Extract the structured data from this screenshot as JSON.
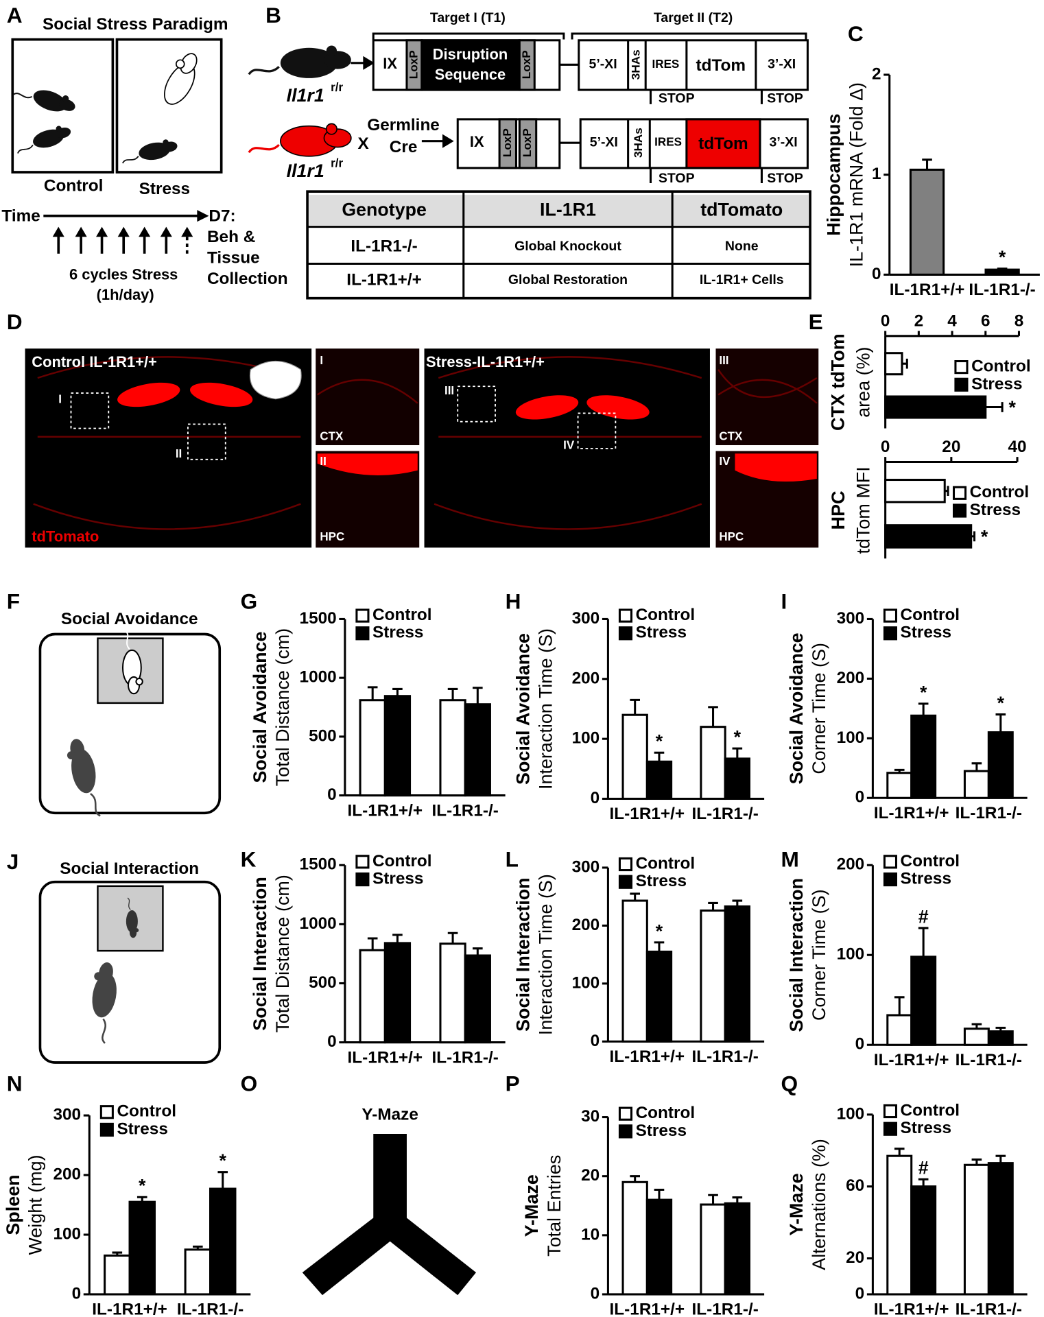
{
  "panel_a": {
    "label": "A",
    "title": "Social Stress Paradigm",
    "control": "Control",
    "stress": "Stress",
    "time": "Time",
    "cycles": "6 cycles Stress",
    "duration": "(1h/day)",
    "endpoint": [
      "D7:",
      "Beh &",
      "Tissue",
      "Collection"
    ]
  },
  "panel_b": {
    "label": "B",
    "target1": "Target I (T1)",
    "target2": "Target II (T2)",
    "gene": "Il1r1",
    "gene_sup": "r/r",
    "cross": "X",
    "cre": [
      "Germline",
      "Cre"
    ],
    "construct1": [
      "IX",
      "LoxP",
      "Disruption",
      "Sequence",
      "LoxP",
      "5’-XI",
      "3HAs",
      "IRES",
      "tdTom",
      "3’-XI",
      "STOP",
      "STOP"
    ],
    "construct2": [
      "IX",
      "LoxP",
      "LoxP",
      "5’-XI",
      "3HAs",
      "IRES",
      "tdTom",
      "3’-XI",
      "STOP",
      "STOP"
    ]
  },
  "table": {
    "header": [
      "Genotype",
      "IL-1R1",
      "tdTomato"
    ],
    "rows": [
      [
        "IL-1R1-/-",
        "Global Knockout",
        "None"
      ],
      [
        "IL-1R1+/+",
        "Global Restoration",
        "IL-1R1+ Cells"
      ]
    ]
  },
  "panel_d": {
    "label": "D",
    "control": "Control IL-1R1+/+",
    "stress": "Stress-IL-1R1+/+",
    "marker": "tdTomato",
    "regions": [
      "I",
      "II",
      "III",
      "IV"
    ],
    "ctx": "CTX",
    "hpc": "HPC"
  },
  "panel_f": {
    "label": "F",
    "title": "Social Avoidance"
  },
  "panel_j": {
    "label": "J",
    "title": "Social Interaction"
  },
  "panel_o": {
    "label": "O",
    "title": "Y-Maze"
  },
  "chart_data": [
    {
      "panel": "C",
      "type": "bar",
      "ylabel_group": "Hippocampus",
      "ylabel": "IL-1R1 mRNA (Fold Δ)",
      "categories": [
        "IL-1R1+/+",
        "IL-1R1-/-"
      ],
      "values": [
        1.05,
        0.05
      ],
      "errors": [
        0.1,
        0.01
      ],
      "colors": [
        "#808080",
        "#000000"
      ],
      "annotations": [
        null,
        "*"
      ],
      "ylim": [
        0,
        2
      ],
      "yticks": [
        0,
        1,
        2
      ]
    },
    {
      "panel": "E",
      "type": "bar",
      "orientation": "horizontal",
      "ylabel_group": "CTX tdTom",
      "ylabel": "area (%)",
      "series": [
        {
          "name": "Control",
          "color": "#ffffff",
          "values": [
            1
          ],
          "errors": [
            0.3
          ]
        },
        {
          "name": "Stress",
          "color": "#000000",
          "values": [
            6
          ],
          "errors": [
            1
          ],
          "annotations": [
            "*"
          ]
        }
      ],
      "xlim": [
        0,
        8
      ],
      "xticks": [
        0,
        2,
        4,
        6,
        8
      ],
      "legend": "upper right"
    },
    {
      "type": "bar",
      "orientation": "horizontal",
      "ylabel_group": "HPC",
      "ylabel": "tdTom MFI",
      "series": [
        {
          "name": "Control",
          "color": "#ffffff",
          "values": [
            18
          ],
          "errors": [
            1
          ]
        },
        {
          "name": "Stress",
          "color": "#000000",
          "values": [
            26
          ],
          "errors": [
            1
          ],
          "annotations": [
            "*"
          ]
        }
      ],
      "xlim": [
        0,
        40
      ],
      "xticks": [
        0,
        20,
        40
      ],
      "legend": "upper right"
    },
    {
      "panel": "G",
      "type": "bar",
      "ylabel_group": "Social Avoidance",
      "ylabel": "Total Distance (cm)",
      "categories": [
        "IL-1R1+/+",
        "IL-1R1-/-"
      ],
      "series": [
        {
          "name": "Control",
          "color": "#ffffff",
          "values": [
            810,
            810
          ],
          "errors": [
            110,
            95
          ]
        },
        {
          "name": "Stress",
          "color": "#000000",
          "values": [
            845,
            775
          ],
          "errors": [
            60,
            140
          ]
        }
      ],
      "ylim": [
        0,
        1500
      ],
      "yticks": [
        0,
        500,
        1000,
        1500
      ],
      "legend": "upper left"
    },
    {
      "panel": "H",
      "type": "bar",
      "ylabel_group": "Social Avoidance",
      "ylabel": "Interaction Time (S)",
      "categories": [
        "IL-1R1+/+",
        "IL-1R1-/-"
      ],
      "series": [
        {
          "name": "Control",
          "color": "#ffffff",
          "values": [
            140,
            120
          ],
          "errors": [
            25,
            33
          ]
        },
        {
          "name": "Stress",
          "color": "#000000",
          "values": [
            62,
            67
          ],
          "errors": [
            15,
            17
          ],
          "annotations": [
            "*",
            "*"
          ]
        }
      ],
      "ylim": [
        0,
        300
      ],
      "yticks": [
        0,
        100,
        200,
        300
      ],
      "legend": "upper left"
    },
    {
      "panel": "I",
      "type": "bar",
      "ylabel_group": "Social Avoidance",
      "ylabel": "Corner Time (S)",
      "categories": [
        "IL-1R1+/+",
        "IL-1R1-/-"
      ],
      "series": [
        {
          "name": "Control",
          "color": "#ffffff",
          "values": [
            42,
            45
          ],
          "errors": [
            5,
            13
          ]
        },
        {
          "name": "Stress",
          "color": "#000000",
          "values": [
            138,
            110
          ],
          "errors": [
            20,
            30
          ],
          "annotations": [
            "*",
            "*"
          ]
        }
      ],
      "ylim": [
        0,
        300
      ],
      "yticks": [
        0,
        100,
        200,
        300
      ],
      "legend": "upper left"
    },
    {
      "panel": "K",
      "type": "bar",
      "ylabel_group": "Social Interaction",
      "ylabel": "Total Distance (cm)",
      "categories": [
        "IL-1R1+/+",
        "IL-1R1-/-"
      ],
      "series": [
        {
          "name": "Control",
          "color": "#ffffff",
          "values": [
            780,
            835
          ],
          "errors": [
            100,
            90
          ]
        },
        {
          "name": "Stress",
          "color": "#000000",
          "values": [
            840,
            735
          ],
          "errors": [
            70,
            60
          ]
        }
      ],
      "ylim": [
        0,
        1500
      ],
      "yticks": [
        0,
        500,
        1000,
        1500
      ],
      "legend": "upper left"
    },
    {
      "panel": "L",
      "type": "bar",
      "ylabel_group": "Social Interaction",
      "ylabel": "Interaction Time (S)",
      "categories": [
        "IL-1R1+/+",
        "IL-1R1-/-"
      ],
      "series": [
        {
          "name": "Control",
          "color": "#ffffff",
          "values": [
            243,
            226
          ],
          "errors": [
            12,
            13
          ]
        },
        {
          "name": "Stress",
          "color": "#000000",
          "values": [
            155,
            233
          ],
          "errors": [
            16,
            10
          ],
          "annotations": [
            "*",
            null
          ]
        }
      ],
      "ylim": [
        0,
        300
      ],
      "yticks": [
        0,
        100,
        200,
        300
      ],
      "legend": "upper left"
    },
    {
      "panel": "M",
      "type": "bar",
      "ylabel_group": "Social Interaction",
      "ylabel": "Corner Time (S)",
      "categories": [
        "IL-1R1+/+",
        "IL-1R1-/-"
      ],
      "series": [
        {
          "name": "Control",
          "color": "#ffffff",
          "values": [
            33,
            18
          ],
          "errors": [
            20,
            5
          ]
        },
        {
          "name": "Stress",
          "color": "#000000",
          "values": [
            98,
            15
          ],
          "errors": [
            32,
            4
          ],
          "annotations": [
            "#",
            null
          ]
        }
      ],
      "ylim": [
        0,
        200
      ],
      "yticks": [
        0,
        100,
        200
      ],
      "legend": "upper left"
    },
    {
      "panel": "N",
      "type": "bar",
      "ylabel_group": "Spleen",
      "ylabel": "Weight (mg)",
      "categories": [
        "IL-1R1+/+",
        "IL-1R1-/-"
      ],
      "series": [
        {
          "name": "Control",
          "color": "#ffffff",
          "values": [
            65,
            75
          ],
          "errors": [
            5,
            5
          ]
        },
        {
          "name": "Stress",
          "color": "#000000",
          "values": [
            155,
            177
          ],
          "errors": [
            8,
            28
          ],
          "annotations": [
            "*",
            "*"
          ]
        }
      ],
      "ylim": [
        0,
        300
      ],
      "yticks": [
        0,
        100,
        200,
        300
      ],
      "legend": "upper left"
    },
    {
      "panel": "P",
      "type": "bar",
      "ylabel_group": "Y-Maze",
      "ylabel": "Total Entries",
      "categories": [
        "IL-1R1+/+",
        "IL-1R1-/-"
      ],
      "series": [
        {
          "name": "Control",
          "color": "#ffffff",
          "values": [
            19,
            15.2
          ],
          "errors": [
            1,
            1.6
          ]
        },
        {
          "name": "Stress",
          "color": "#000000",
          "values": [
            16,
            15.4
          ],
          "errors": [
            1.7,
            1
          ]
        }
      ],
      "ylim": [
        0,
        30
      ],
      "yticks": [
        0,
        10,
        20,
        30
      ],
      "legend": "upper left"
    },
    {
      "panel": "Q",
      "type": "bar",
      "ylabel_group": "Y-Maze",
      "ylabel": "Alternations (%)",
      "categories": [
        "IL-1R1+/+",
        "IL-1R1-/-"
      ],
      "series": [
        {
          "name": "Control",
          "color": "#ffffff",
          "values": [
            77,
            72
          ],
          "errors": [
            4,
            3
          ]
        },
        {
          "name": "Stress",
          "color": "#000000",
          "values": [
            60,
            73
          ],
          "errors": [
            4,
            4
          ],
          "annotations": [
            "#",
            null
          ]
        }
      ],
      "ylim": [
        0,
        100
      ],
      "yticks": [
        0,
        20,
        60,
        100
      ],
      "legend": "upper left"
    }
  ]
}
